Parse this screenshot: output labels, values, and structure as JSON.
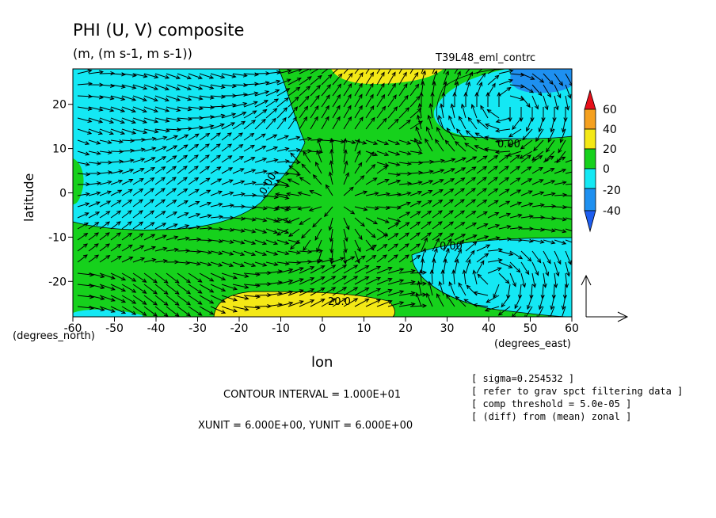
{
  "chart_data": {
    "type": "heatmap",
    "title": "PHI (U, V) composite",
    "units": "(m, (m s-1, m s-1))",
    "run_label": "T39L48_eml_contrc",
    "xlabel": "lon",
    "ylabel": "latitude",
    "x_unit_label": "(degrees_east)",
    "y_unit_label": "(degrees_north)",
    "xlim": [
      -60,
      60
    ],
    "ylim": [
      -28,
      28
    ],
    "x_ticks": [
      "-60",
      "-50",
      "-40",
      "-30",
      "-20",
      "-10",
      "0",
      "10",
      "20",
      "30",
      "40",
      "50",
      "60"
    ],
    "y_ticks": [
      "20",
      "10",
      "0",
      "-10",
      "-20"
    ],
    "colorbar": {
      "levels": [
        "60",
        "40",
        "20",
        "0",
        "-20",
        "-40"
      ],
      "colors": [
        "#e8101a",
        "#f5a01e",
        "#f4e816",
        "#16d11c",
        "#14e8f4",
        "#1e90f0",
        "#1e5ef0"
      ]
    },
    "regions": [
      {
        "name": "western-negative",
        "range": "-20 to 0",
        "color": "#14e8f4"
      },
      {
        "name": "central-positive",
        "range": "0 to 20",
        "color": "#16d11c"
      },
      {
        "name": "south-positive",
        "range": "20 to 40",
        "color": "#f4e816"
      },
      {
        "name": "north-positive",
        "range": "20 to 40",
        "color": "#f4e816"
      },
      {
        "name": "eastern-north-negative",
        "range": "-20 to 0",
        "color": "#14e8f4"
      },
      {
        "name": "eastern-south-negative",
        "range": "-20 to 0",
        "color": "#14e8f4"
      },
      {
        "name": "far-north-east-negative",
        "range": "-40 to -20",
        "color": "#1e90f0"
      }
    ],
    "contour_labels": [
      "0.00",
      "0.00",
      "0.00",
      "20.0"
    ],
    "vector_field": "wind vectors (U, V) over the full domain"
  },
  "footer": {
    "contour_interval": "CONTOUR INTERVAL = 1.000E+01",
    "units_line": "XUNIT = 6.000E+00, YUNIT = 6.000E+00"
  },
  "notes": [
    "[ sigma=0.254532 ]",
    "[ refer to grav spct filtering data ]",
    "[ comp threshold = 5.0e-05 ]",
    "[ (diff) from (mean) zonal ]"
  ]
}
